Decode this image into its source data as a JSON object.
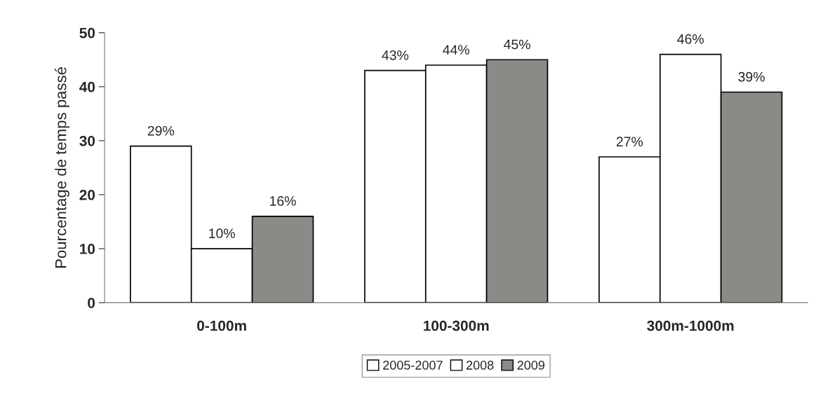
{
  "chart_data": {
    "type": "bar",
    "ylabel": "Pourcentage de temps passé",
    "categories": [
      "0-100m",
      "100-300m",
      "300m-1000m"
    ],
    "series": [
      {
        "name": "2005-2007",
        "color": "#ffffff",
        "values": [
          29,
          43,
          27
        ],
        "value_labels": [
          "29%",
          "43%",
          "27%"
        ]
      },
      {
        "name": "2008",
        "color": "#ffffff",
        "values": [
          10,
          44,
          46
        ],
        "value_labels": [
          "10%",
          "44%",
          "46%"
        ]
      },
      {
        "name": "2009",
        "color": "#8c8a87",
        "values": [
          16,
          45,
          39
        ],
        "value_labels": [
          "16%",
          "45%",
          "39%"
        ]
      }
    ],
    "ylim": [
      0,
      50
    ],
    "yticks": [
      0,
      10,
      20,
      30,
      40,
      50
    ],
    "grid": false,
    "legend": "bottom"
  }
}
